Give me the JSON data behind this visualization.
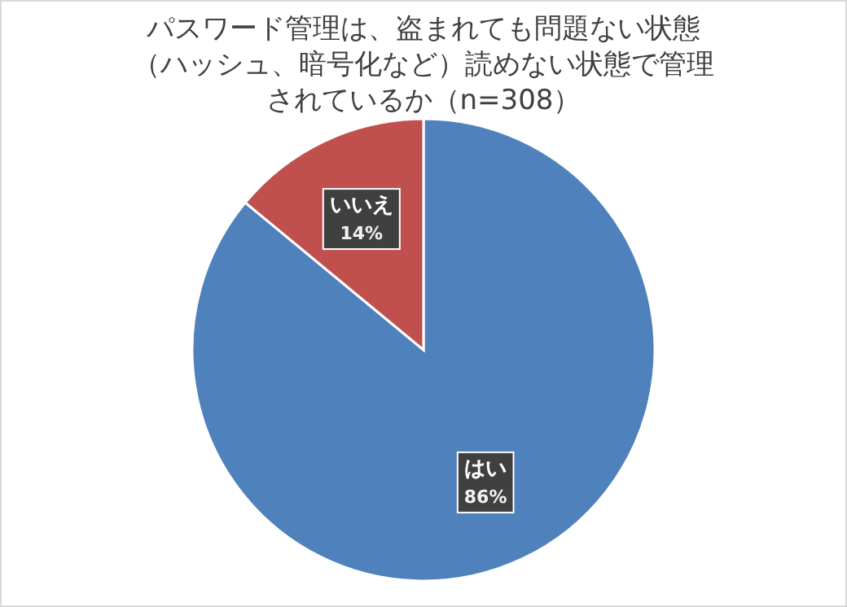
{
  "chart_data": {
    "type": "pie",
    "title": "パスワード管理は、盗まれても問題ない状態（ハッシュ、暗号化など）読めない状態で管理されているか（n=308）",
    "categories": [
      "はい",
      "いいえ"
    ],
    "values": [
      86,
      14
    ],
    "colors": [
      "#4f81bd",
      "#c0504d"
    ],
    "value_labels": [
      "86%",
      "14%"
    ]
  }
}
